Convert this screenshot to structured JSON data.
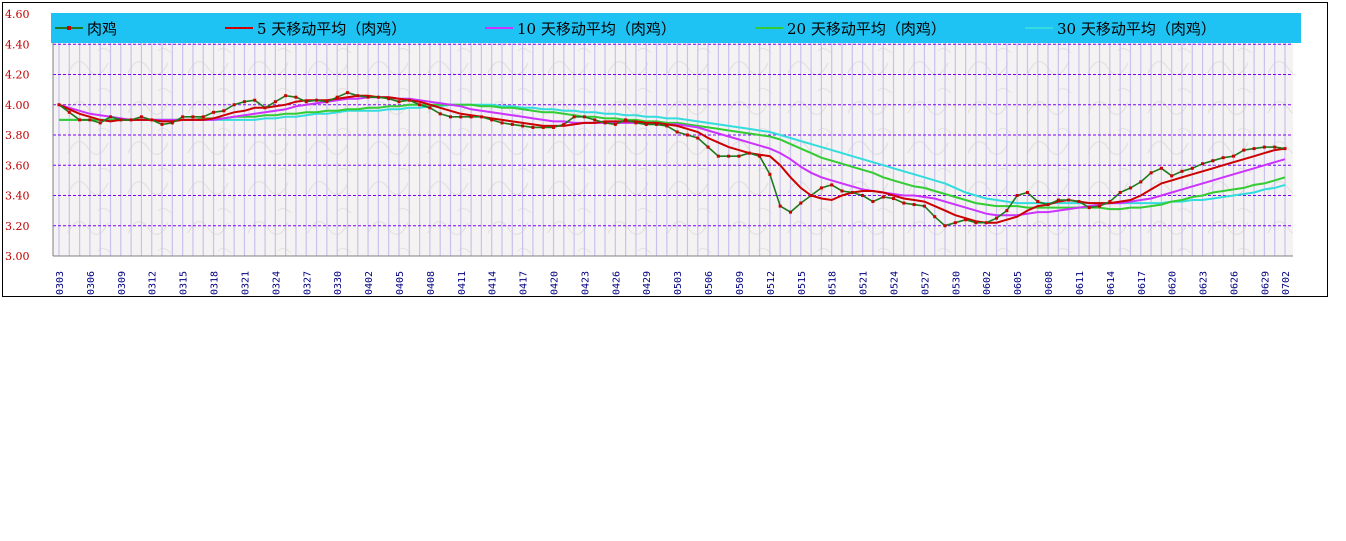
{
  "chart_data": {
    "type": "line",
    "title": "",
    "ylim": [
      3.0,
      4.6
    ],
    "y_ticks": [
      "3.00",
      "3.20",
      "3.40",
      "3.60",
      "3.80",
      "4.00",
      "4.20",
      "4.40",
      "4.60"
    ],
    "x_tick_labels": [
      "0303",
      "0306",
      "0309",
      "0312",
      "0315",
      "0318",
      "0321",
      "0324",
      "0327",
      "0330",
      "0402",
      "0405",
      "0408",
      "0411",
      "0414",
      "0417",
      "0420",
      "0423",
      "0426",
      "0429",
      "0503",
      "0506",
      "0509",
      "0512",
      "0515",
      "0518",
      "0521",
      "0524",
      "0527",
      "0530",
      "0602",
      "0605",
      "0608",
      "0611",
      "0614",
      "0617",
      "0620",
      "0623",
      "0626",
      "0629",
      "0702"
    ],
    "grid": true,
    "legend_position": "top",
    "series": [
      {
        "name": "肉鸡",
        "color": "#1f7a1f",
        "values": [
          4.0,
          3.95,
          3.9,
          3.9,
          3.88,
          3.92,
          3.9,
          3.9,
          3.92,
          3.9,
          3.87,
          3.88,
          3.92,
          3.92,
          3.92,
          3.95,
          3.96,
          4.0,
          4.02,
          4.03,
          3.98,
          4.02,
          4.06,
          4.05,
          4.02,
          4.03,
          4.02,
          4.05,
          4.08,
          4.06,
          4.05,
          4.05,
          4.04,
          4.02,
          4.03,
          4.0,
          3.98,
          3.94,
          3.92,
          3.92,
          3.92,
          3.92,
          3.9,
          3.88,
          3.87,
          3.86,
          3.85,
          3.85,
          3.85,
          3.87,
          3.92,
          3.92,
          3.9,
          3.88,
          3.87,
          3.9,
          3.88,
          3.87,
          3.87,
          3.86,
          3.82,
          3.8,
          3.78,
          3.72,
          3.66,
          3.66,
          3.66,
          3.68,
          3.66,
          3.54,
          3.33,
          3.29,
          3.35,
          3.4,
          3.45,
          3.47,
          3.43,
          3.42,
          3.4,
          3.36,
          3.39,
          3.38,
          3.35,
          3.34,
          3.33,
          3.26,
          3.2,
          3.22,
          3.24,
          3.22,
          3.22,
          3.25,
          3.3,
          3.4,
          3.42,
          3.36,
          3.34,
          3.37,
          3.37,
          3.36,
          3.32,
          3.33,
          3.36,
          3.42,
          3.45,
          3.49,
          3.55,
          3.58,
          3.53,
          3.56,
          3.58,
          3.61,
          3.63,
          3.65,
          3.66,
          3.7,
          3.71,
          3.72,
          3.72,
          3.71
        ]
      },
      {
        "name": "5 天移动平均（肉鸡）",
        "color": "#cc0000",
        "values": [
          4.0,
          3.97,
          3.94,
          3.92,
          3.9,
          3.89,
          3.9,
          3.9,
          3.9,
          3.9,
          3.89,
          3.89,
          3.9,
          3.9,
          3.9,
          3.91,
          3.93,
          3.95,
          3.96,
          3.98,
          3.98,
          3.99,
          4.0,
          4.02,
          4.03,
          4.03,
          4.03,
          4.04,
          4.05,
          4.06,
          4.06,
          4.05,
          4.05,
          4.04,
          4.03,
          4.02,
          4.0,
          3.98,
          3.96,
          3.94,
          3.93,
          3.92,
          3.91,
          3.9,
          3.89,
          3.88,
          3.87,
          3.86,
          3.86,
          3.86,
          3.87,
          3.88,
          3.88,
          3.89,
          3.89,
          3.89,
          3.89,
          3.88,
          3.88,
          3.87,
          3.86,
          3.84,
          3.82,
          3.78,
          3.75,
          3.72,
          3.7,
          3.68,
          3.67,
          3.66,
          3.6,
          3.52,
          3.45,
          3.4,
          3.38,
          3.37,
          3.4,
          3.42,
          3.43,
          3.43,
          3.42,
          3.4,
          3.38,
          3.37,
          3.36,
          3.33,
          3.3,
          3.27,
          3.25,
          3.23,
          3.22,
          3.22,
          3.24,
          3.26,
          3.3,
          3.33,
          3.34,
          3.36,
          3.37,
          3.36,
          3.35,
          3.35,
          3.35,
          3.36,
          3.37,
          3.4,
          3.44,
          3.48,
          3.5,
          3.52,
          3.54,
          3.56,
          3.58,
          3.6,
          3.62,
          3.64,
          3.66,
          3.68,
          3.7,
          3.71
        ]
      },
      {
        "name": "10 天移动平均（肉鸡）",
        "color": "#cc33ff",
        "values": [
          4.0,
          3.98,
          3.96,
          3.94,
          3.93,
          3.92,
          3.91,
          3.9,
          3.9,
          3.9,
          3.9,
          3.9,
          3.9,
          3.9,
          3.9,
          3.9,
          3.91,
          3.92,
          3.93,
          3.94,
          3.95,
          3.96,
          3.97,
          3.99,
          4.0,
          4.01,
          4.02,
          4.03,
          4.04,
          4.04,
          4.05,
          4.05,
          4.05,
          4.04,
          4.04,
          4.03,
          4.02,
          4.01,
          4.0,
          3.99,
          3.97,
          3.96,
          3.95,
          3.94,
          3.93,
          3.92,
          3.91,
          3.9,
          3.89,
          3.89,
          3.88,
          3.88,
          3.88,
          3.88,
          3.88,
          3.88,
          3.88,
          3.88,
          3.88,
          3.87,
          3.87,
          3.86,
          3.85,
          3.83,
          3.81,
          3.79,
          3.77,
          3.75,
          3.73,
          3.71,
          3.68,
          3.64,
          3.59,
          3.55,
          3.52,
          3.5,
          3.48,
          3.46,
          3.44,
          3.43,
          3.42,
          3.41,
          3.4,
          3.4,
          3.39,
          3.38,
          3.36,
          3.34,
          3.32,
          3.3,
          3.28,
          3.27,
          3.27,
          3.27,
          3.28,
          3.29,
          3.29,
          3.3,
          3.31,
          3.32,
          3.33,
          3.34,
          3.35,
          3.35,
          3.36,
          3.37,
          3.38,
          3.4,
          3.42,
          3.44,
          3.46,
          3.48,
          3.5,
          3.52,
          3.54,
          3.56,
          3.58,
          3.6,
          3.62,
          3.64
        ]
      },
      {
        "name": "20 天移动平均（肉鸡）",
        "color": "#33cc33",
        "values": [
          3.9,
          3.9,
          3.9,
          3.9,
          3.9,
          3.9,
          3.9,
          3.9,
          3.9,
          3.9,
          3.9,
          3.9,
          3.9,
          3.9,
          3.91,
          3.91,
          3.91,
          3.92,
          3.92,
          3.92,
          3.93,
          3.93,
          3.94,
          3.94,
          3.95,
          3.95,
          3.96,
          3.96,
          3.97,
          3.97,
          3.98,
          3.98,
          3.99,
          3.99,
          4.0,
          4.0,
          4.0,
          4.0,
          4.0,
          4.0,
          4.0,
          3.99,
          3.99,
          3.98,
          3.98,
          3.97,
          3.96,
          3.95,
          3.95,
          3.94,
          3.93,
          3.92,
          3.92,
          3.91,
          3.91,
          3.9,
          3.9,
          3.89,
          3.89,
          3.88,
          3.88,
          3.87,
          3.86,
          3.85,
          3.84,
          3.83,
          3.82,
          3.81,
          3.8,
          3.79,
          3.77,
          3.74,
          3.71,
          3.68,
          3.65,
          3.63,
          3.61,
          3.59,
          3.57,
          3.55,
          3.52,
          3.5,
          3.48,
          3.46,
          3.45,
          3.43,
          3.41,
          3.39,
          3.37,
          3.35,
          3.34,
          3.33,
          3.33,
          3.33,
          3.32,
          3.32,
          3.32,
          3.32,
          3.32,
          3.32,
          3.32,
          3.32,
          3.31,
          3.31,
          3.32,
          3.32,
          3.33,
          3.34,
          3.36,
          3.37,
          3.39,
          3.4,
          3.42,
          3.43,
          3.44,
          3.45,
          3.47,
          3.48,
          3.5,
          3.52
        ]
      },
      {
        "name": "30 天移动平均（肉鸡）",
        "color": "#33dddd",
        "values": [
          3.9,
          3.9,
          3.9,
          3.9,
          3.9,
          3.9,
          3.9,
          3.9,
          3.9,
          3.9,
          3.9,
          3.9,
          3.9,
          3.9,
          3.9,
          3.9,
          3.9,
          3.9,
          3.9,
          3.9,
          3.91,
          3.91,
          3.92,
          3.92,
          3.93,
          3.94,
          3.94,
          3.95,
          3.96,
          3.96,
          3.96,
          3.96,
          3.97,
          3.97,
          3.98,
          3.98,
          3.99,
          3.99,
          4.0,
          4.0,
          4.0,
          4.0,
          4.0,
          3.99,
          3.99,
          3.98,
          3.98,
          3.97,
          3.97,
          3.96,
          3.96,
          3.95,
          3.95,
          3.94,
          3.94,
          3.93,
          3.93,
          3.92,
          3.92,
          3.91,
          3.91,
          3.9,
          3.89,
          3.88,
          3.87,
          3.86,
          3.85,
          3.84,
          3.83,
          3.82,
          3.8,
          3.78,
          3.76,
          3.74,
          3.72,
          3.7,
          3.68,
          3.66,
          3.64,
          3.62,
          3.6,
          3.58,
          3.56,
          3.54,
          3.52,
          3.5,
          3.48,
          3.45,
          3.42,
          3.4,
          3.38,
          3.37,
          3.36,
          3.35,
          3.35,
          3.35,
          3.35,
          3.35,
          3.35,
          3.35,
          3.35,
          3.35,
          3.35,
          3.35,
          3.35,
          3.35,
          3.35,
          3.35,
          3.36,
          3.36,
          3.37,
          3.37,
          3.38,
          3.39,
          3.4,
          3.41,
          3.42,
          3.44,
          3.45,
          3.47
        ]
      }
    ]
  }
}
